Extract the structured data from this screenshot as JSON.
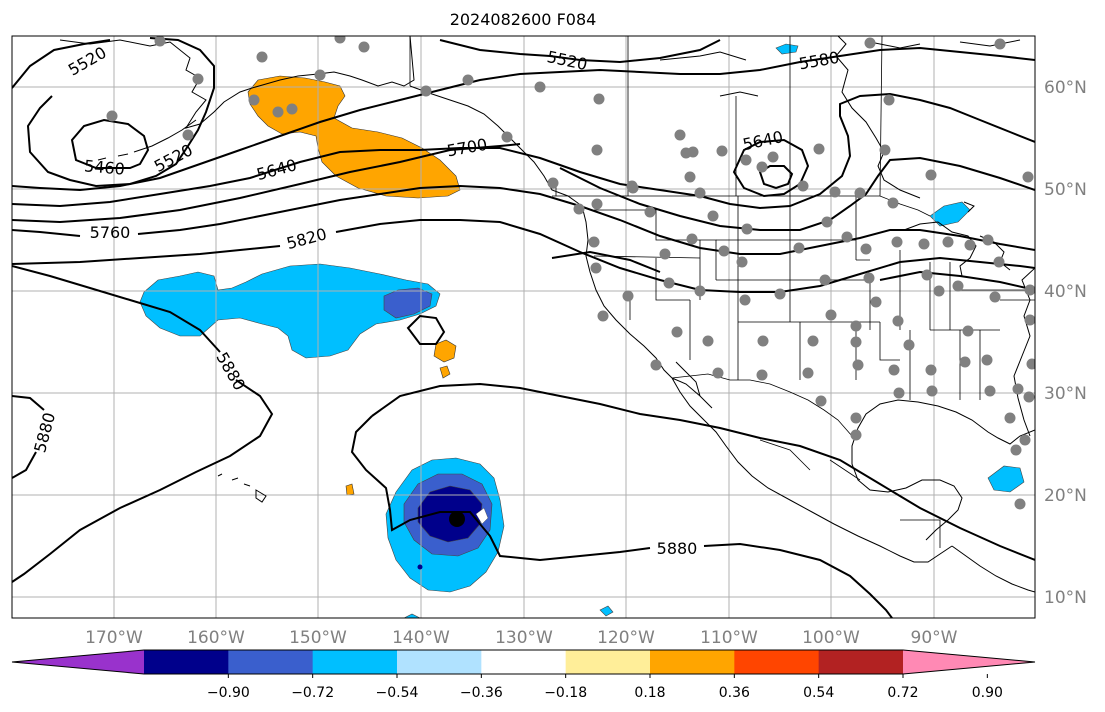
{
  "title": "2024082600 F084",
  "map": {
    "projection": "cylindrical",
    "lon_range": [
      -180,
      -80
    ],
    "lat_range": [
      8,
      65
    ],
    "lon_ticks": [
      {
        "label": "170°W",
        "lon": -170
      },
      {
        "label": "160°W",
        "lon": -160
      },
      {
        "label": "150°W",
        "lon": -150
      },
      {
        "label": "140°W",
        "lon": -140
      },
      {
        "label": "130°W",
        "lon": -130
      },
      {
        "label": "120°W",
        "lon": -120
      },
      {
        "label": "110°W",
        "lon": -110
      },
      {
        "label": "100°W",
        "lon": -100
      },
      {
        "label": "90°W",
        "lon": -90
      }
    ],
    "lat_ticks": [
      {
        "label": "60°N",
        "lat": 60
      },
      {
        "label": "50°N",
        "lat": 50
      },
      {
        "label": "40°N",
        "lat": 40
      },
      {
        "label": "30°N",
        "lat": 30
      },
      {
        "label": "20°N",
        "lat": 20
      },
      {
        "label": "10°N",
        "lat": 10
      }
    ]
  },
  "contour_labels": [
    "5520",
    "5520",
    "5580",
    "5460",
    "5520",
    "5640",
    "5700",
    "5640",
    "5760",
    "5820",
    "5880",
    "5880",
    "5880"
  ],
  "colorbar": {
    "colors": [
      "#9932cc",
      "#00008b",
      "#3a5fcd",
      "#00bfff",
      "#b0e2ff",
      "#ffffff",
      "#ffee99",
      "#ffa500",
      "#ff4500",
      "#b22222",
      "#ff89b4"
    ],
    "tick_labels": [
      "−0.90",
      "−0.72",
      "−0.54",
      "−0.36",
      "−0.18",
      "0.18",
      "0.36",
      "0.54",
      "0.72",
      "0.90"
    ]
  },
  "colors": {
    "land_line": "#000000",
    "grid": "#b0b0b0",
    "station_dot": "#808080",
    "tick_text": "#808080",
    "orange_fill": "#ffa500",
    "light_blue_fill": "#00bfff",
    "mid_blue_fill": "#3a5fcd",
    "dark_blue_fill": "#00008b"
  }
}
